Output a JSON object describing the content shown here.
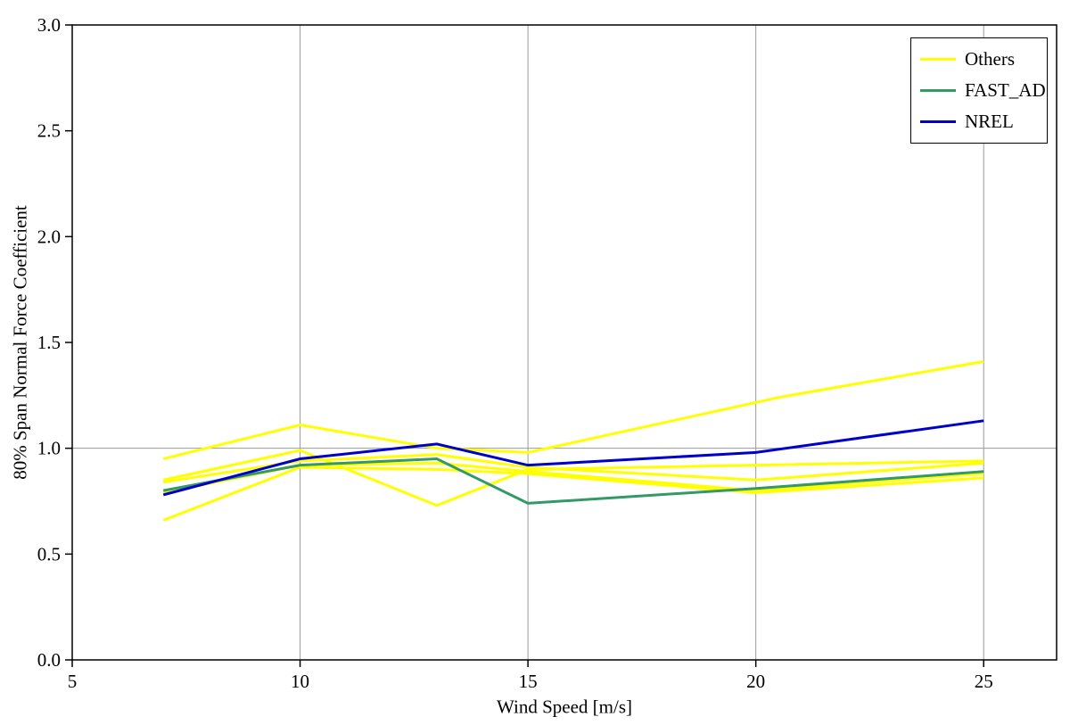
{
  "chart_data": {
    "type": "line",
    "xlabel": "Wind Speed [m/s]",
    "ylabel": "80% Span Normal Force Coefficient",
    "xlim": [
      5,
      26.6
    ],
    "ylim": [
      0.0,
      3.0
    ],
    "x_ticks": [
      5,
      10,
      15,
      20,
      25
    ],
    "x_tick_labels": [
      "5",
      "10",
      "15",
      "20",
      "25"
    ],
    "y_ticks": [
      0.0,
      0.5,
      1.0,
      1.5,
      2.0,
      2.5,
      3.0
    ],
    "y_tick_labels": [
      "0.0",
      "0.5",
      "1.0",
      "1.5",
      "2.0",
      "2.5",
      "3.0"
    ],
    "grid": {
      "vertical_at": [
        10,
        15,
        20,
        25
      ],
      "horizontal_at": [
        1.0
      ],
      "color": "#9a9a9a"
    },
    "frame_color": "#000000",
    "legend": {
      "position": "top-right",
      "entries": [
        {
          "label": "Others",
          "color": "#ffff00"
        },
        {
          "label": "FAST_AD",
          "color": "#339966"
        },
        {
          "label": "NREL",
          "color": "#0000cc"
        }
      ]
    },
    "series": [
      {
        "name": "Others-1",
        "legend": "Others",
        "color": "#ffff00",
        "x": [
          7,
          10,
          13,
          15,
          20.5,
          25
        ],
        "y": [
          0.95,
          1.11,
          1.0,
          0.98,
          1.24,
          1.41
        ]
      },
      {
        "name": "Others-2",
        "legend": "Others",
        "color": "#ffff00",
        "x": [
          7,
          10,
          13,
          15,
          20,
          25
        ],
        "y": [
          0.85,
          0.99,
          0.73,
          0.9,
          0.92,
          0.94
        ]
      },
      {
        "name": "Others-3",
        "legend": "Others",
        "color": "#ffff00",
        "x": [
          7,
          10,
          13,
          15,
          20,
          25
        ],
        "y": [
          0.84,
          0.94,
          0.97,
          0.91,
          0.85,
          0.93
        ]
      },
      {
        "name": "Others-4",
        "legend": "Others",
        "color": "#ffff00",
        "x": [
          7,
          10,
          13,
          15,
          20,
          25
        ],
        "y": [
          0.79,
          0.92,
          0.93,
          0.89,
          0.8,
          0.88
        ]
      },
      {
        "name": "Others-5",
        "legend": "Others",
        "color": "#ffff00",
        "x": [
          7,
          10,
          13,
          15,
          20,
          25
        ],
        "y": [
          0.66,
          0.91,
          0.9,
          0.88,
          0.79,
          0.86
        ]
      },
      {
        "name": "FAST_AD",
        "legend": "FAST_AD",
        "color": "#339966",
        "x": [
          7,
          10,
          13,
          15,
          20,
          25
        ],
        "y": [
          0.8,
          0.92,
          0.95,
          0.74,
          0.81,
          0.89
        ]
      },
      {
        "name": "NREL",
        "legend": "NREL",
        "color": "#0000cc",
        "x": [
          7,
          10,
          13,
          15,
          20,
          25
        ],
        "y": [
          0.78,
          0.95,
          1.02,
          0.92,
          0.98,
          1.13
        ]
      }
    ]
  }
}
